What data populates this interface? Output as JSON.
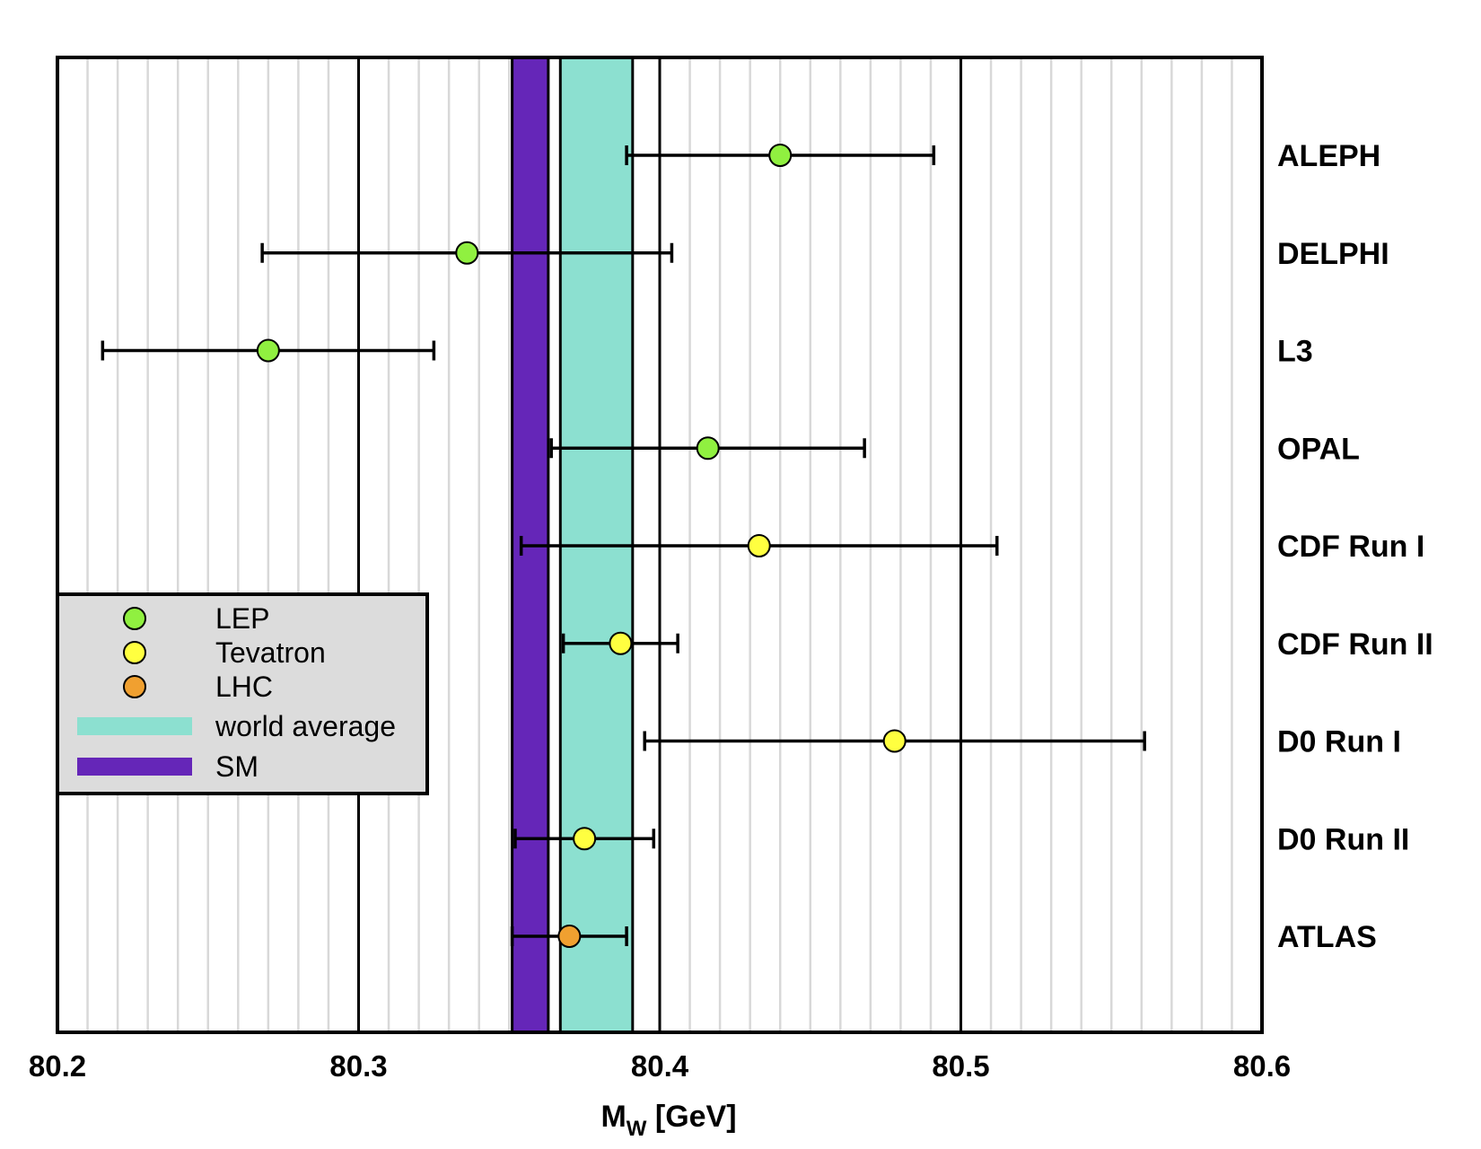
{
  "chart_data": {
    "type": "scatter",
    "subtype": "horizontal error-bar plot",
    "xlabel_main": "M",
    "xlabel_sub": "W",
    "xlabel_unit": " [GeV]",
    "xlim": [
      80.2,
      80.6
    ],
    "x_major_ticks": [
      80.2,
      80.3,
      80.4,
      80.5,
      80.6
    ],
    "x_tick_labels": [
      "80.2",
      "80.3",
      "80.4",
      "80.5",
      "80.6"
    ],
    "x_minor_step": 0.01,
    "grid": "vertical",
    "experiments": [
      {
        "label": "ALEPH",
        "value": 80.44,
        "low": 80.389,
        "high": 80.491,
        "group": "LEP"
      },
      {
        "label": "DELPHI",
        "value": 80.336,
        "low": 80.268,
        "high": 80.404,
        "group": "LEP"
      },
      {
        "label": "L3",
        "value": 80.27,
        "low": 80.215,
        "high": 80.325,
        "group": "LEP"
      },
      {
        "label": "OPAL",
        "value": 80.416,
        "low": 80.364,
        "high": 80.468,
        "group": "LEP"
      },
      {
        "label": "CDF Run I",
        "value": 80.433,
        "low": 80.354,
        "high": 80.512,
        "group": "Tevatron"
      },
      {
        "label": "CDF Run II",
        "value": 80.387,
        "low": 80.368,
        "high": 80.406,
        "group": "Tevatron"
      },
      {
        "label": "D0 Run I",
        "value": 80.478,
        "low": 80.395,
        "high": 80.561,
        "group": "Tevatron"
      },
      {
        "label": "D0 Run II",
        "value": 80.375,
        "low": 80.352,
        "high": 80.398,
        "group": "Tevatron"
      },
      {
        "label": "ATLAS",
        "value": 80.37,
        "low": 80.351,
        "high": 80.389,
        "group": "LHC"
      }
    ],
    "bands": [
      {
        "name": "world average",
        "low": 80.367,
        "high": 80.391,
        "color": "#8ce0d0"
      },
      {
        "name": "SM",
        "low": 80.351,
        "high": 80.363,
        "color": "#6526b8"
      }
    ],
    "legend": {
      "placement": "left-bottom",
      "entries": [
        {
          "label": "LEP",
          "kind": "marker",
          "color": "#90f040"
        },
        {
          "label": "Tevatron",
          "kind": "marker",
          "color": "#ffff40"
        },
        {
          "label": "LHC",
          "kind": "marker",
          "color": "#f0a030"
        },
        {
          "label": "world average",
          "kind": "band",
          "color": "#8ce0d0"
        },
        {
          "label": "SM",
          "kind": "band",
          "color": "#6526b8"
        }
      ]
    },
    "group_colors": {
      "LEP": "#90f040",
      "Tevatron": "#ffff40",
      "LHC": "#f0a030"
    }
  }
}
